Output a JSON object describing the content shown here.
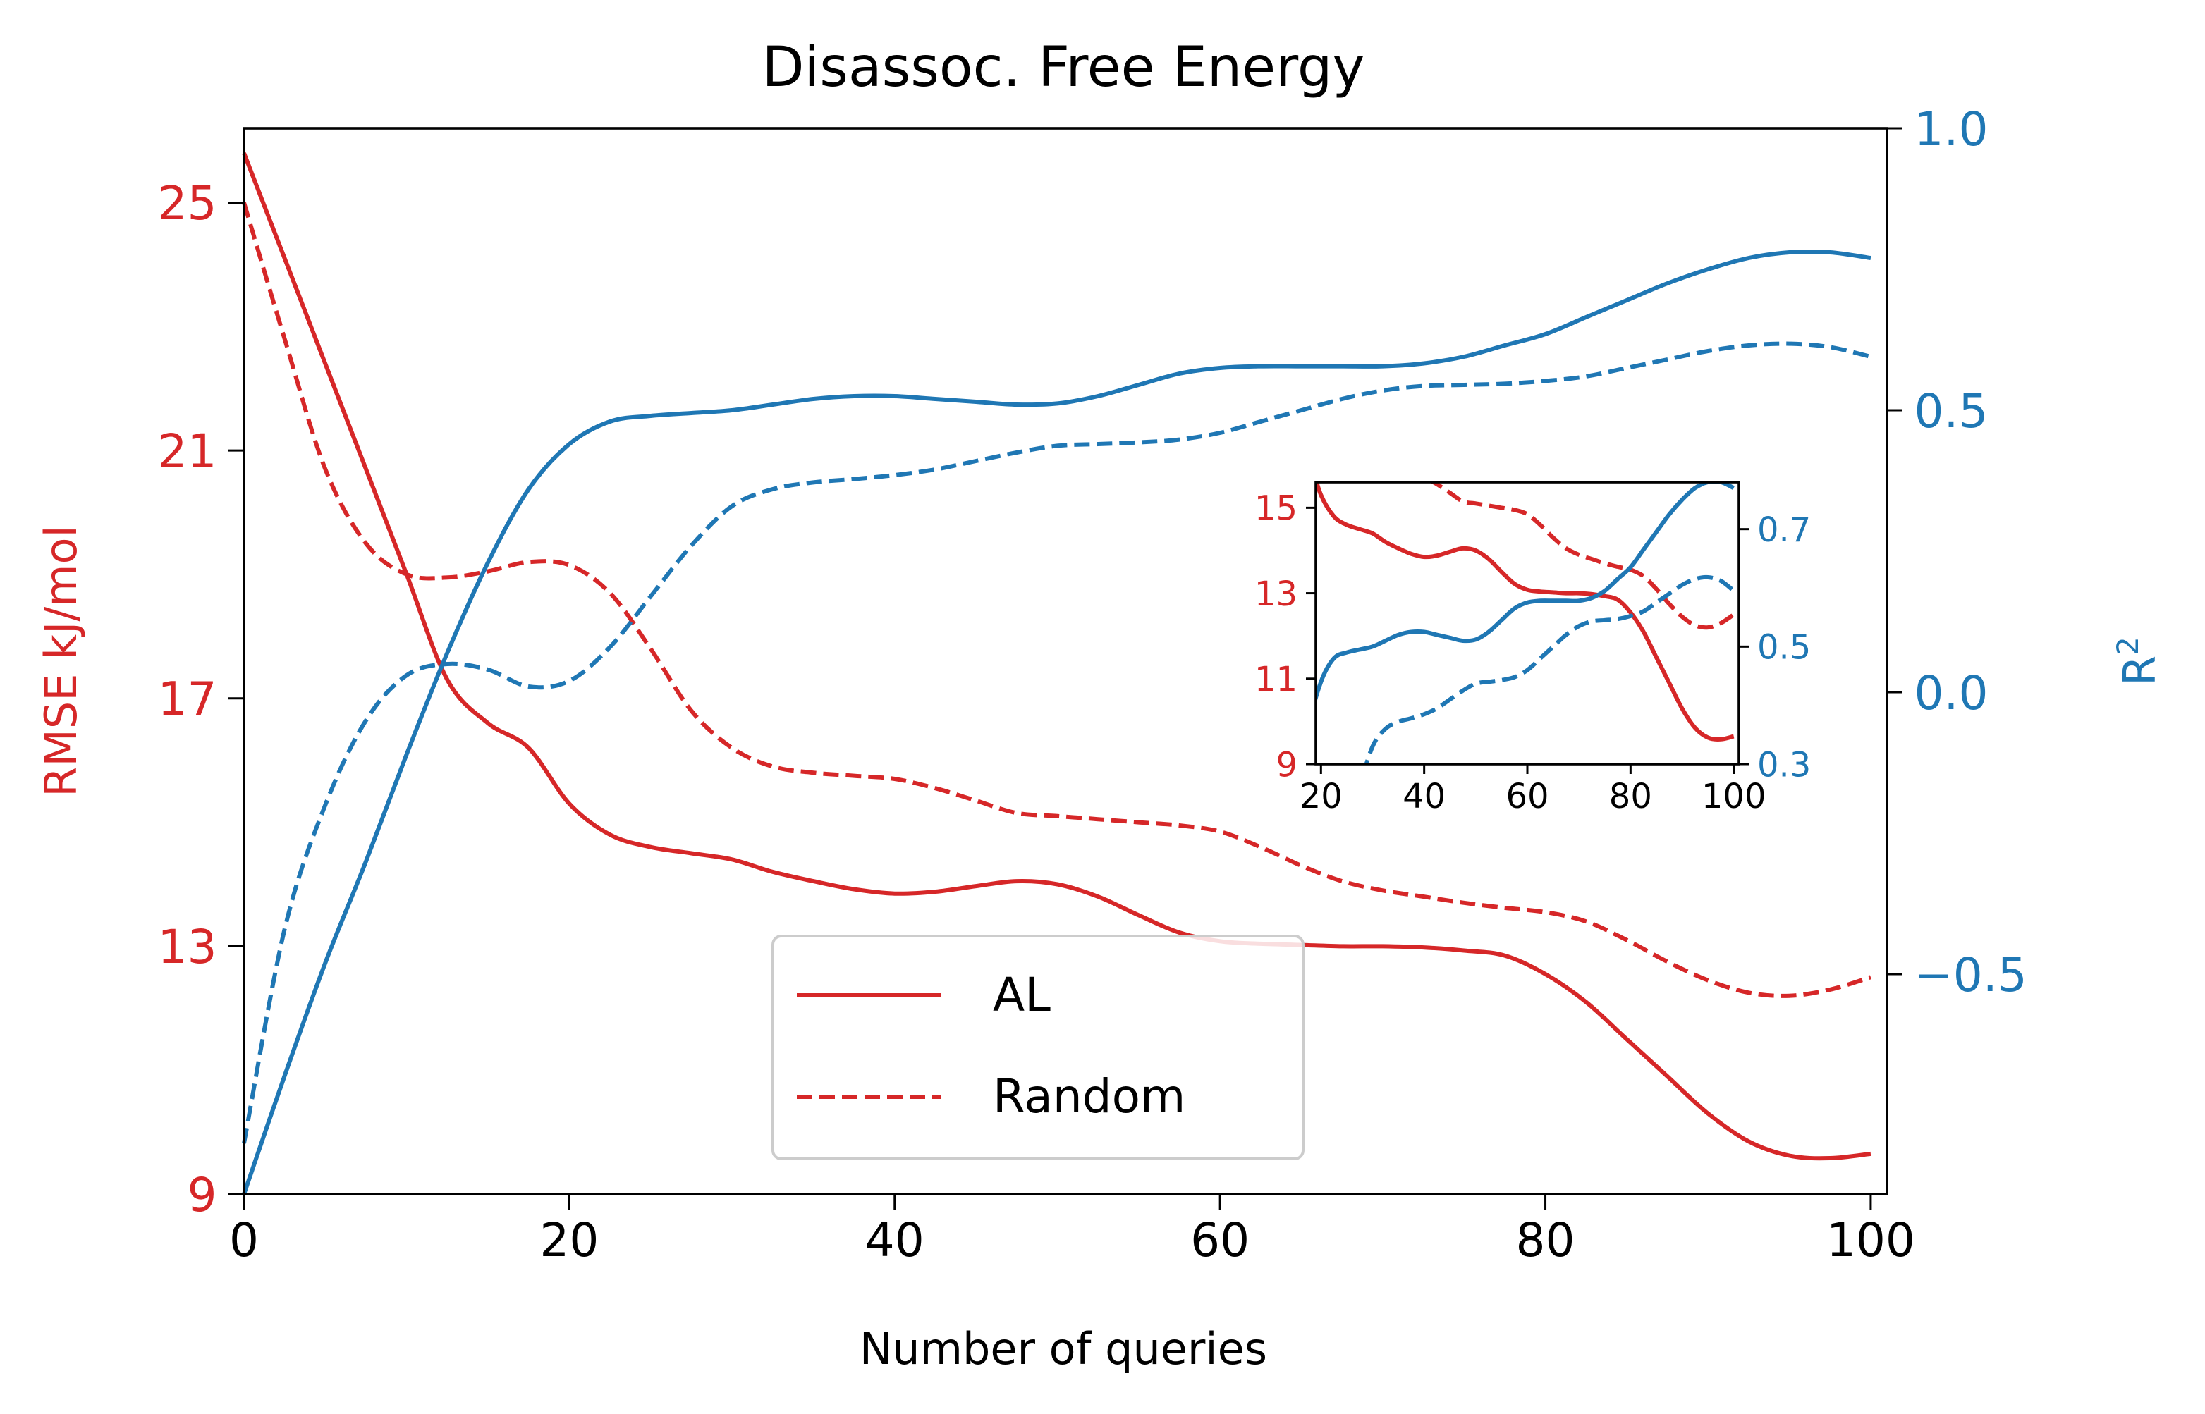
{
  "chart_data": {
    "type": "line",
    "title": "Disassoc. Free Energy",
    "xlabel": "Number of queries",
    "ylabel_left": "RMSE kJ/mol",
    "ylabel_right_base": "R",
    "ylabel_right_sup": "2",
    "xlim": [
      0,
      101
    ],
    "ylim_left": [
      9,
      26.2
    ],
    "ylim_right": [
      -0.89,
      1.0
    ],
    "x_ticks": [
      "0",
      "20",
      "40",
      "60",
      "80",
      "100"
    ],
    "y_left_ticks": [
      "9",
      "13",
      "17",
      "21",
      "25"
    ],
    "y_right_ticks": [
      "−0.5",
      "0.0",
      "0.5",
      "1.0"
    ],
    "colors": {
      "rmse": "#d62728",
      "r2": "#1f77b4",
      "axis": "#000000"
    },
    "grid": false,
    "legend": {
      "position": "lower-center",
      "entries": [
        {
          "label": "AL",
          "style": "solid"
        },
        {
          "label": "Random",
          "style": "dashed"
        }
      ]
    },
    "x": [
      0,
      2.5,
      5,
      7.5,
      10,
      12.5,
      15,
      17.5,
      20,
      22.5,
      25,
      27.5,
      30,
      32.5,
      35,
      37.5,
      40,
      42.5,
      45,
      47.5,
      50,
      52.5,
      55,
      57.5,
      60,
      62.5,
      65,
      67.5,
      70,
      72.5,
      75,
      77.5,
      80,
      82.5,
      85,
      87.5,
      90,
      92.5,
      95,
      97.5,
      100
    ],
    "series": [
      {
        "name": "AL",
        "metric": "RMSE",
        "axis": "left",
        "style": "solid",
        "values": [
          25.8,
          24.1,
          22.4,
          20.7,
          19.0,
          17.3,
          16.6,
          16.2,
          15.3,
          14.8,
          14.6,
          14.5,
          14.4,
          14.2,
          14.05,
          13.92,
          13.85,
          13.88,
          13.97,
          14.05,
          14.0,
          13.8,
          13.5,
          13.22,
          13.08,
          13.04,
          13.02,
          13.0,
          13.0,
          12.98,
          12.93,
          12.85,
          12.55,
          12.1,
          11.5,
          10.9,
          10.3,
          9.85,
          9.62,
          9.58,
          9.65
        ]
      },
      {
        "name": "Random",
        "metric": "RMSE",
        "axis": "left",
        "style": "dashed",
        "values": [
          25.0,
          22.8,
          20.7,
          19.5,
          19.0,
          18.95,
          19.05,
          19.2,
          19.15,
          18.7,
          17.8,
          16.8,
          16.2,
          15.9,
          15.8,
          15.75,
          15.7,
          15.55,
          15.35,
          15.15,
          15.1,
          15.05,
          15.0,
          14.95,
          14.85,
          14.6,
          14.3,
          14.05,
          13.9,
          13.8,
          13.7,
          13.62,
          13.55,
          13.4,
          13.1,
          12.75,
          12.45,
          12.25,
          12.2,
          12.3,
          12.5
        ]
      },
      {
        "name": "AL",
        "metric": "R2",
        "axis": "right",
        "style": "solid",
        "values": [
          -0.89,
          -0.68,
          -0.48,
          -0.3,
          -0.11,
          0.07,
          0.23,
          0.36,
          0.44,
          0.48,
          0.49,
          0.495,
          0.5,
          0.51,
          0.52,
          0.525,
          0.525,
          0.52,
          0.515,
          0.51,
          0.512,
          0.525,
          0.545,
          0.565,
          0.575,
          0.578,
          0.578,
          0.578,
          0.578,
          0.583,
          0.595,
          0.615,
          0.635,
          0.665,
          0.695,
          0.725,
          0.75,
          0.77,
          0.78,
          0.78,
          0.77
        ]
      },
      {
        "name": "Random",
        "metric": "R2",
        "axis": "right",
        "style": "dashed",
        "values": [
          -0.8,
          -0.42,
          -0.2,
          -0.05,
          0.03,
          0.05,
          0.04,
          0.01,
          0.02,
          0.08,
          0.17,
          0.26,
          0.33,
          0.36,
          0.372,
          0.378,
          0.385,
          0.395,
          0.41,
          0.425,
          0.437,
          0.44,
          0.443,
          0.448,
          0.46,
          0.48,
          0.5,
          0.52,
          0.535,
          0.543,
          0.545,
          0.547,
          0.552,
          0.56,
          0.575,
          0.59,
          0.605,
          0.615,
          0.618,
          0.612,
          0.595
        ]
      }
    ],
    "inset": {
      "xlim": [
        19,
        101
      ],
      "ylim_left": [
        9,
        15.6
      ],
      "ylim_right": [
        0.3,
        0.78
      ],
      "x_ticks": [
        "20",
        "40",
        "60",
        "80",
        "100"
      ],
      "y_left_ticks": [
        "9",
        "11",
        "13",
        "15"
      ],
      "y_right_ticks": [
        "0.3",
        "0.5",
        "0.7"
      ]
    }
  }
}
